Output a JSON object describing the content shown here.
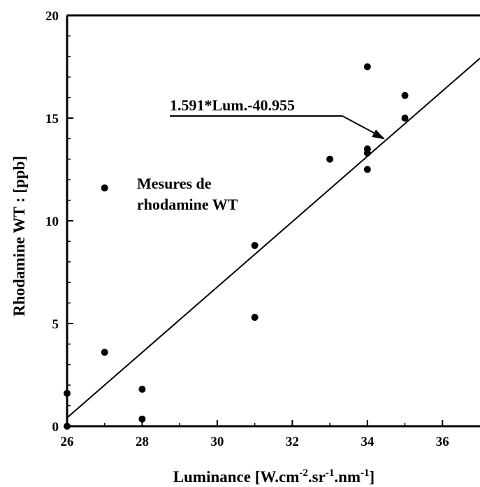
{
  "chart_data": {
    "type": "scatter",
    "xlabel": {
      "base": "Luminance [W.cm",
      "sup1": "-2",
      "mid1": ".sr",
      "sup2": "-1",
      "mid2": ".nm",
      "sup3": "-1",
      "end": "]"
    },
    "ylabel": "Rhodamine WT : [ppb]",
    "xlim": [
      26,
      37.0
    ],
    "ylim": [
      0,
      20
    ],
    "xticks": [
      26,
      28,
      30,
      32,
      34,
      36
    ],
    "yticks": [
      0,
      5,
      10,
      15,
      20
    ],
    "grid": false,
    "series": [
      {
        "name": "Mesures de rhodamine WT",
        "points": [
          {
            "x": 26,
            "y": 1.6
          },
          {
            "x": 26,
            "y": 0
          },
          {
            "x": 27,
            "y": 11.6
          },
          {
            "x": 27,
            "y": 3.6
          },
          {
            "x": 28,
            "y": 1.8
          },
          {
            "x": 28,
            "y": 0.35
          },
          {
            "x": 31,
            "y": 8.8
          },
          {
            "x": 31,
            "y": 5.3
          },
          {
            "x": 33,
            "y": 13.0
          },
          {
            "x": 34,
            "y": 17.5
          },
          {
            "x": 34,
            "y": 13.5
          },
          {
            "x": 34,
            "y": 13.3
          },
          {
            "x": 34,
            "y": 12.5
          },
          {
            "x": 35,
            "y": 16.1
          },
          {
            "x": 35,
            "y": 15.0
          }
        ]
      }
    ],
    "fit": {
      "label": "1.591*Lum.-40.955",
      "slope": 1.591,
      "intercept": -40.955
    },
    "legend_label_line1": "Mesures de",
    "legend_label_line2": "rhodamine WT"
  }
}
